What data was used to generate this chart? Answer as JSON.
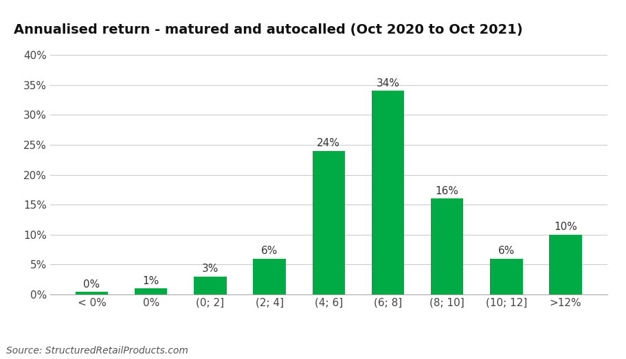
{
  "title": "Annualised return - matured and autocalled (Oct 2020 to Oct 2021)",
  "categories": [
    "< 0%",
    "0%",
    "(0; 2]",
    "(2; 4]",
    "(4; 6]",
    "(6; 8]",
    "(8; 10]",
    "(10; 12]",
    ">12%"
  ],
  "values": [
    0.4,
    1.0,
    3.0,
    6.0,
    24.0,
    34.0,
    16.0,
    6.0,
    10.0
  ],
  "labels": [
    "0%",
    "1%",
    "3%",
    "6%",
    "24%",
    "34%",
    "16%",
    "6%",
    "10%"
  ],
  "bar_color": "#00AA44",
  "background_color": "#FFFFFF",
  "grid_color": "#CCCCCC",
  "title_fontsize": 14,
  "tick_fontsize": 11,
  "label_fontsize": 11,
  "source_text": "Source: StructuredRetailProducts.com",
  "ylim": [
    0,
    42
  ],
  "yticks": [
    0,
    5,
    10,
    15,
    20,
    25,
    30,
    35,
    40
  ],
  "ytick_labels": [
    "0%",
    "5%",
    "10%",
    "15%",
    "20%",
    "25%",
    "30%",
    "35%",
    "40%"
  ]
}
